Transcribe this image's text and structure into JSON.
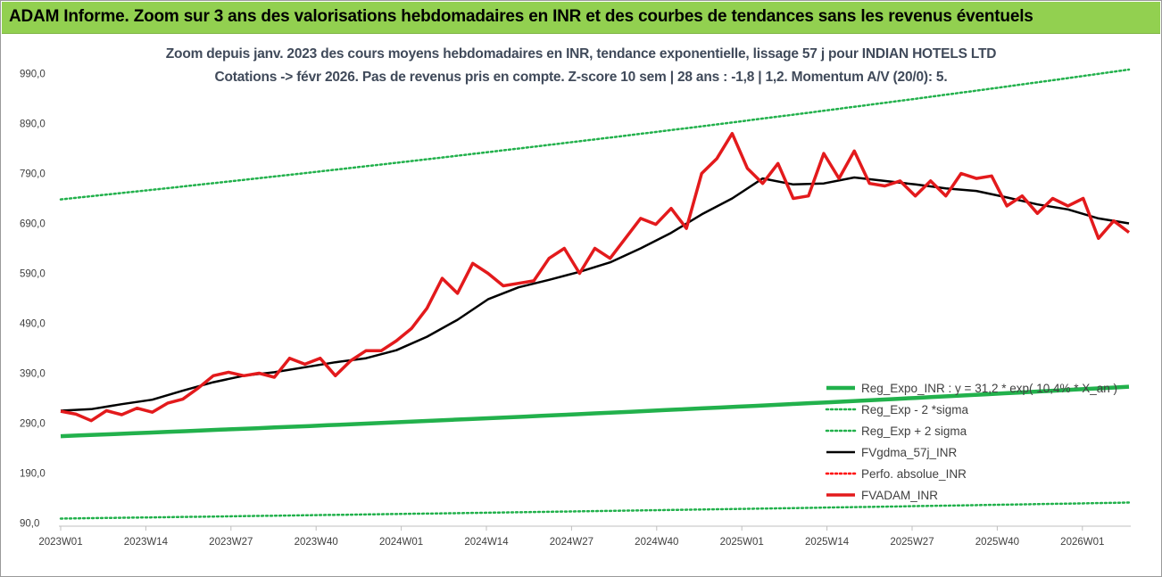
{
  "banner": {
    "title": "ADAM Informe. Zoom sur 3 ans des valorisations hebdomadaires en INR et des courbes de tendances sans les revenus éventuels"
  },
  "chart_data": {
    "type": "line",
    "title": "Zoom depuis janv. 2023 des cours moyens hebdomadaires en INR, tendance exponentielle, lissage 57 j pour INDIAN HOTELS LTD",
    "subtitle": "Cotations -> févr 2026. Pas de revenus pris en compte. Z-score 10 sem | 28 ans : -1,8 | 1,2. Momentum A/V (20/0): 5.",
    "ylim": [
      90,
      1000
    ],
    "y_ticks": [
      "990,0",
      "890,0",
      "790,0",
      "690,0",
      "590,0",
      "490,0",
      "390,0",
      "290,0",
      "190,0",
      "90,0"
    ],
    "x_ticks": [
      "2023W01",
      "2023W14",
      "2023W27",
      "2023W40",
      "2024W01",
      "2024W14",
      "2024W27",
      "2024W40",
      "2025W01",
      "2025W14",
      "2025W27",
      "2025W40",
      "2026W01"
    ],
    "legend_position": "bottom-right",
    "grid": false,
    "series": [
      {
        "name": "Reg_Expo_INR : y = 31,2 * exp( 10,4% * X_an )",
        "color": "#22b14c",
        "style": "solid-thick",
        "start": 264,
        "end": 363
      },
      {
        "name": "Reg_Exp - 2 *sigma",
        "color": "#22b14c",
        "style": "dotted",
        "start": 99,
        "end": 131
      },
      {
        "name": "Reg_Exp + 2 sigma",
        "color": "#22b14c",
        "style": "dotted",
        "start": 738,
        "end": 998
      },
      {
        "name": "FVgdma_57j_INR",
        "color": "#000000",
        "style": "solid",
        "values": [
          315,
          318,
          328,
          337,
          355,
          372,
          385,
          392,
          402,
          412,
          420,
          436,
          463,
          497,
          538,
          562,
          577,
          593,
          612,
          640,
          671,
          708,
          740,
          780,
          768,
          770,
          782,
          775,
          768,
          760,
          755,
          742,
          728,
          718,
          700,
          690
        ]
      },
      {
        "name": "Perfo. absolue_INR",
        "color": "#ff0000",
        "style": "dotted",
        "values": []
      },
      {
        "name": "FVADAM_INR",
        "color": "#e31a1c",
        "style": "solid-thick",
        "values": [
          314,
          308,
          295,
          315,
          307,
          320,
          312,
          330,
          338,
          360,
          385,
          392,
          385,
          390,
          382,
          420,
          408,
          420,
          385,
          415,
          435,
          435,
          455,
          480,
          520,
          580,
          550,
          610,
          590,
          565,
          570,
          575,
          620,
          640,
          590,
          640,
          620,
          660,
          700,
          688,
          720,
          680,
          790,
          820,
          870,
          800,
          770,
          810,
          740,
          745,
          830,
          780,
          835,
          770,
          765,
          775,
          745,
          775,
          745,
          790,
          780,
          785,
          725,
          745,
          710,
          740,
          725,
          740,
          660,
          695,
          672
        ]
      }
    ]
  }
}
